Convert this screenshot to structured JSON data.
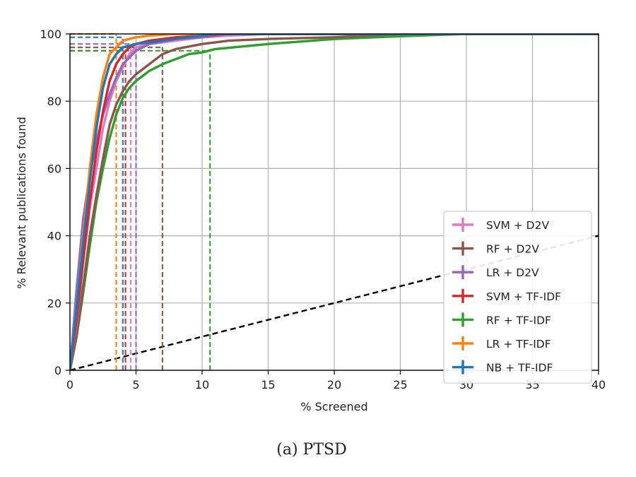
{
  "chart_data": {
    "type": "line",
    "caption": "(a) PTSD",
    "xlabel": "% Screened",
    "ylabel": "% Relevant publications found",
    "xlim": [
      0,
      40
    ],
    "ylim": [
      0,
      100
    ],
    "xticks": [
      0,
      5,
      10,
      15,
      20,
      25,
      30,
      35,
      40
    ],
    "yticks": [
      0,
      20,
      40,
      60,
      80,
      100
    ],
    "grid": true,
    "legend_position": "lower-right",
    "series": [
      {
        "name": "SVM + D2V",
        "color": "#e377c2",
        "x": [
          0,
          0.5,
          1,
          1.5,
          2,
          2.5,
          3,
          3.5,
          4,
          4.5,
          5,
          6,
          8,
          10,
          12,
          15,
          40
        ],
        "y": [
          0,
          14,
          32,
          48,
          60,
          72,
          80,
          86,
          90,
          94,
          96,
          97,
          98,
          99,
          99.5,
          100,
          100
        ],
        "x95": 4.6,
        "y95": 96
      },
      {
        "name": "RF + D2V",
        "color": "#8c564b",
        "x": [
          0,
          0.5,
          1,
          1.5,
          2,
          2.5,
          3,
          3.5,
          4,
          4.5,
          5,
          6,
          7,
          8,
          10,
          12,
          15,
          20,
          25,
          40
        ],
        "y": [
          0,
          10,
          25,
          40,
          52,
          63,
          73,
          79,
          83,
          86,
          88,
          91,
          94,
          95.5,
          97,
          98,
          98.5,
          99,
          100,
          100
        ],
        "x95": 7.0,
        "y95": 96
      },
      {
        "name": "LR + D2V",
        "color": "#9467bd",
        "x": [
          0,
          0.5,
          1,
          1.5,
          2,
          2.5,
          3,
          3.5,
          4,
          5,
          6,
          8,
          10,
          12,
          40
        ],
        "y": [
          0,
          24,
          45,
          58,
          68,
          76,
          82,
          87,
          91,
          95,
          97,
          98.5,
          99,
          100,
          100
        ],
        "x95": 5.0,
        "y95": 97
      },
      {
        "name": "SVM + TF-IDF",
        "color": "#d62728",
        "x": [
          0,
          0.5,
          1,
          1.5,
          2,
          2.5,
          3,
          3.5,
          4,
          4.5,
          5,
          6,
          8,
          10,
          12,
          40
        ],
        "y": [
          0,
          15,
          33,
          50,
          65,
          77,
          86,
          91,
          94,
          96,
          97,
          98,
          99,
          99.5,
          100,
          100
        ],
        "x95": 4.2,
        "y95": 95
      },
      {
        "name": "RF + TF-IDF",
        "color": "#2ca02c",
        "x": [
          0,
          0.5,
          1,
          1.5,
          2,
          2.5,
          3,
          3.5,
          4,
          4.5,
          5,
          6,
          7,
          8,
          9,
          10,
          11,
          15,
          20,
          25,
          30,
          40
        ],
        "y": [
          0,
          10,
          23,
          37,
          50,
          60,
          69,
          76,
          81,
          84,
          86,
          89,
          91,
          92.5,
          94,
          94.5,
          95.5,
          97,
          98.5,
          99.3,
          100,
          100
        ],
        "x95": 10.6,
        "y95": 95
      },
      {
        "name": "LR + TF-IDF",
        "color": "#ff7f0e",
        "x": [
          0,
          0.5,
          1,
          1.5,
          2,
          2.5,
          3,
          3.5,
          4,
          5,
          6,
          8,
          10,
          40
        ],
        "y": [
          0,
          18,
          40,
          60,
          76,
          87,
          94,
          96,
          98,
          99,
          99.5,
          100,
          100,
          100
        ],
        "x95": 3.5,
        "y95": 100
      },
      {
        "name": "NB + TF-IDF",
        "color": "#1f77b4",
        "x": [
          0,
          0.5,
          1,
          1.5,
          2,
          2.5,
          3,
          3.5,
          4,
          5,
          6,
          8,
          10,
          11,
          40
        ],
        "y": [
          0,
          18,
          38,
          56,
          72,
          84,
          91,
          94,
          96,
          97,
          97.5,
          98.5,
          99.5,
          100,
          100
        ],
        "x95": 4.0,
        "y95": 99
      }
    ],
    "random_baseline": {
      "color": "#000000",
      "x": [
        0,
        40
      ],
      "y": [
        0,
        40
      ]
    }
  }
}
